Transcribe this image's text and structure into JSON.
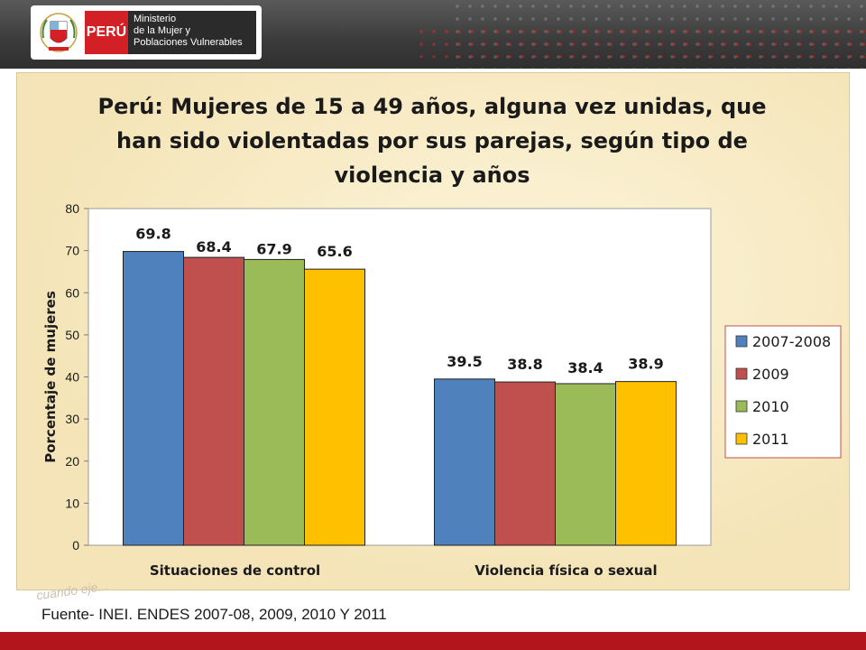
{
  "header": {
    "country_label": "PERÚ",
    "ministry_lines": [
      "Ministerio",
      "de la Mujer y",
      "Poblaciones Vulnerables"
    ],
    "shield_caption": "REPÚBLICA DEL PERÚ"
  },
  "colors": {
    "series": [
      "#4f81bd",
      "#c0504d",
      "#9bbb59",
      "#ffc000"
    ],
    "panel_bg": "#f6e7bd",
    "header_bg": "#3b3b3b",
    "footer_bar": "#b3151c"
  },
  "chart_data": {
    "type": "bar",
    "title": "Perú: Mujeres de 15 a 49 años, alguna vez unidas, que han sido violentadas por sus parejas, según tipo de violencia y años",
    "title_lines": [
      "Perú: Mujeres de 15 a 49 años, alguna vez unidas, que",
      "han sido violentadas por sus parejas, según tipo de",
      "violencia y años"
    ],
    "categories": [
      "Situaciones de control",
      "Violencia física o sexual"
    ],
    "series": [
      {
        "name": "2007-2008",
        "values": [
          69.8,
          39.5
        ]
      },
      {
        "name": "2009",
        "values": [
          68.4,
          38.8
        ]
      },
      {
        "name": "2010",
        "values": [
          67.9,
          38.4
        ]
      },
      {
        "name": "2011",
        "values": [
          65.6,
          38.9
        ]
      }
    ],
    "data_labels": [
      [
        "69.8",
        "39.5"
      ],
      [
        "68.4",
        "38.8"
      ],
      [
        "67.9",
        "38.4"
      ],
      [
        "65.6",
        "38.9"
      ]
    ],
    "xlabel": "",
    "ylabel": "Porcentaje de mujeres",
    "ylim": [
      0,
      80
    ],
    "yticks": [
      0,
      10,
      20,
      30,
      40,
      50,
      60,
      70,
      80
    ],
    "grid": false,
    "legend": "right"
  },
  "footer": {
    "source": "Fuente- INEI. ENDES 2007-08, 2009, 2010 Y 2011",
    "watermark": "cuando eje..."
  }
}
